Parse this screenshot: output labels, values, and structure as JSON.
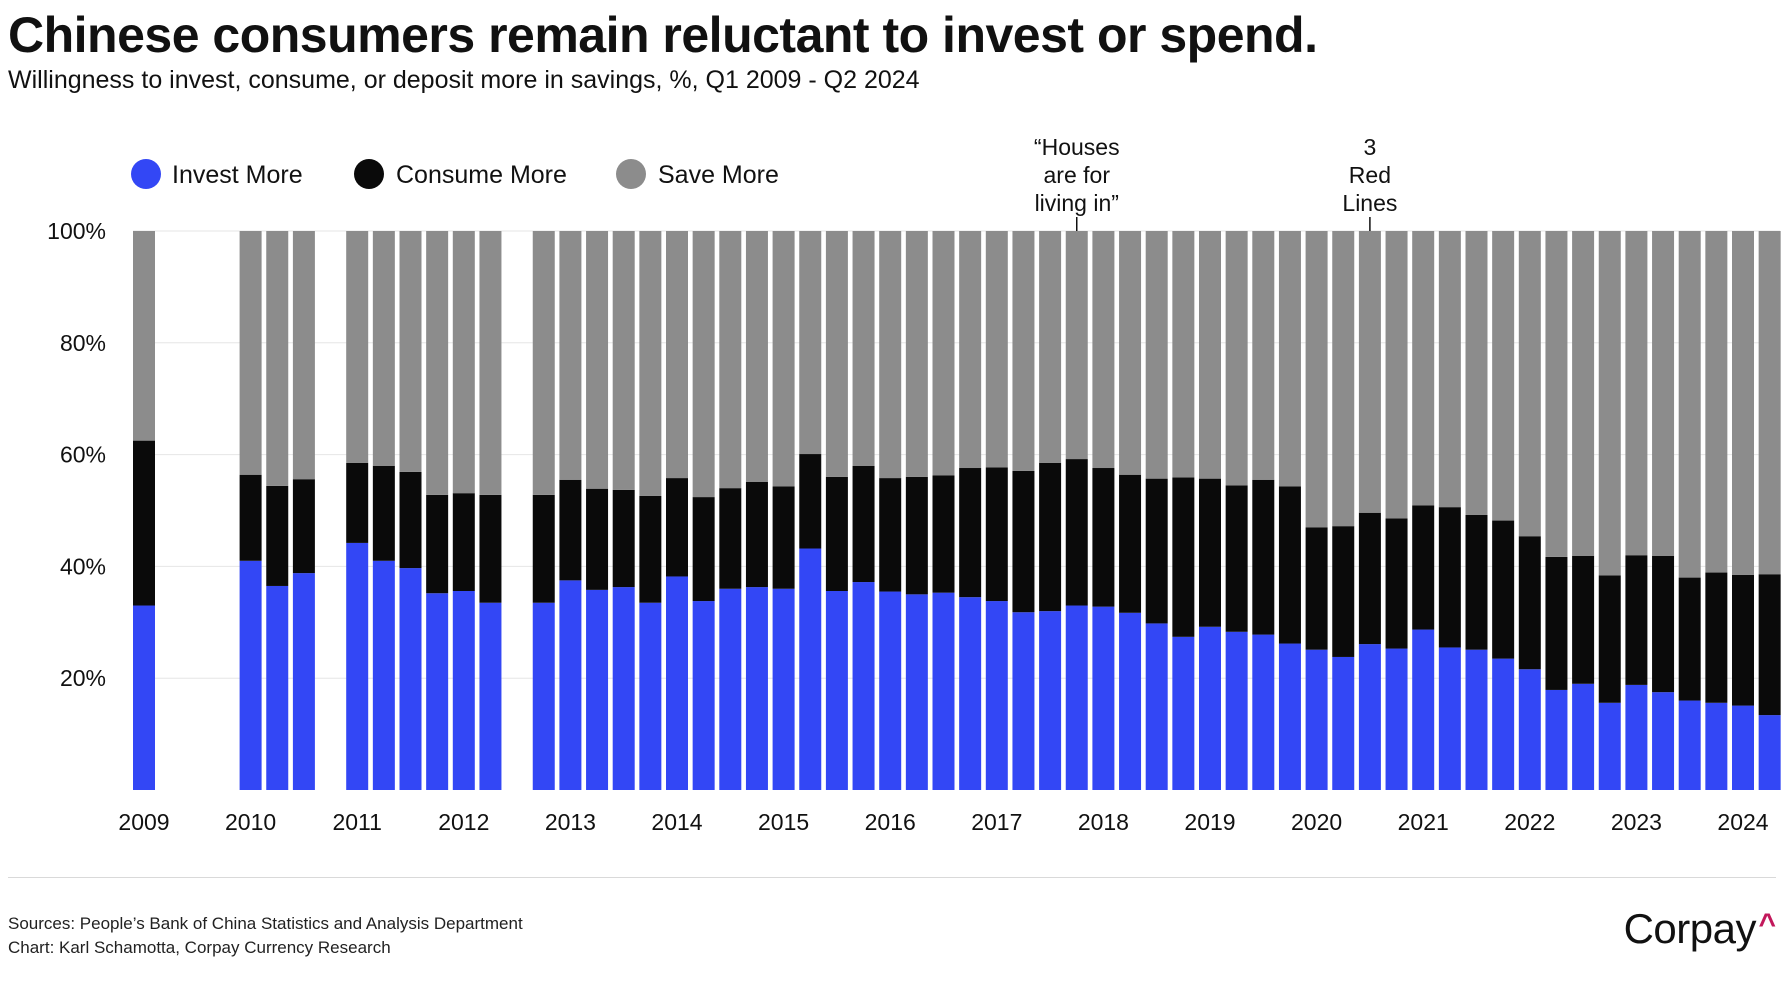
{
  "title": "Chinese consumers remain reluctant to invest or spend.",
  "subtitle": "Willingness to invest, consume, or deposit more in savings, %, Q1 2009 - Q2 2024",
  "footer": {
    "sources": "Sources: People’s Bank of China Statistics and Analysis Department",
    "chart_credit": "Chart: Karl Schamotta, Corpay Currency Research",
    "brand": "Corpay",
    "brand_mark": "^"
  },
  "colors": {
    "invest": "#3347f5",
    "consume": "#0a0a0a",
    "save": "#8c8c8c",
    "background": "#ffffff"
  },
  "chart_data": {
    "type": "bar",
    "stacked": true,
    "ylim": [
      0,
      100
    ],
    "y_ticks": [
      "20%",
      "40%",
      "60%",
      "80%",
      "100%"
    ],
    "y_tick_values": [
      20,
      40,
      60,
      80,
      100
    ],
    "grid": true,
    "legend_position": "top-left",
    "x_tick_labels": [
      "2009",
      "2010",
      "2011",
      "2012",
      "2013",
      "2014",
      "2015",
      "2016",
      "2017",
      "2018",
      "2019",
      "2020",
      "2021",
      "2022",
      "2023",
      "2024"
    ],
    "categories": [
      "2009Q1",
      "2009Q2",
      "2009Q3",
      "2009Q4",
      "2010Q1",
      "2010Q2",
      "2010Q3",
      "2010Q4",
      "2011Q1",
      "2011Q2",
      "2011Q3",
      "2011Q4",
      "2012Q1",
      "2012Q2",
      "2012Q3",
      "2012Q4",
      "2013Q1",
      "2013Q2",
      "2013Q3",
      "2013Q4",
      "2014Q1",
      "2014Q2",
      "2014Q3",
      "2014Q4",
      "2015Q1",
      "2015Q2",
      "2015Q3",
      "2015Q4",
      "2016Q1",
      "2016Q2",
      "2016Q3",
      "2016Q4",
      "2017Q1",
      "2017Q2",
      "2017Q3",
      "2017Q4",
      "2018Q1",
      "2018Q2",
      "2018Q3",
      "2018Q4",
      "2019Q1",
      "2019Q2",
      "2019Q3",
      "2019Q4",
      "2020Q1",
      "2020Q2",
      "2020Q3",
      "2020Q4",
      "2021Q1",
      "2021Q2",
      "2021Q3",
      "2021Q4",
      "2022Q1",
      "2022Q2",
      "2022Q3",
      "2022Q4",
      "2023Q1",
      "2023Q2",
      "2023Q3",
      "2023Q4",
      "2024Q1",
      "2024Q2"
    ],
    "series": [
      {
        "name": "Invest More",
        "values": [
          33,
          null,
          null,
          null,
          41,
          36.5,
          38.8,
          null,
          44.2,
          41,
          39.7,
          35.2,
          35.6,
          33.5,
          null,
          33.5,
          37.5,
          35.8,
          36.3,
          33.5,
          38.2,
          33.8,
          36,
          36.3,
          36,
          43.2,
          35.6,
          37.2,
          35.5,
          35,
          35.3,
          34.5,
          33.8,
          31.8,
          32,
          33,
          32.8,
          31.7,
          29.8,
          27.4,
          29.2,
          28.3,
          27.8,
          26.2,
          25.1,
          23.8,
          26.1,
          25.3,
          28.7,
          25.5,
          25.1,
          23.5,
          21.6,
          17.9,
          19,
          15.6,
          18.8,
          17.5,
          16,
          15.6,
          15.1,
          13.4
        ]
      },
      {
        "name": "Consume More",
        "values": [
          29.5,
          null,
          null,
          null,
          15.4,
          17.9,
          16.8,
          null,
          14.3,
          17,
          17.2,
          17.6,
          17.5,
          19.3,
          null,
          19.3,
          18,
          18.1,
          17.4,
          19.1,
          17.6,
          18.6,
          18,
          18.8,
          18.3,
          16.9,
          20.4,
          20.8,
          20.3,
          21,
          21,
          23.1,
          23.9,
          25.3,
          26.5,
          26.2,
          24.8,
          24.7,
          25.9,
          28.5,
          26.5,
          26.2,
          27.7,
          28.1,
          21.9,
          23.4,
          23.5,
          23.3,
          22.2,
          25.1,
          24.1,
          24.7,
          23.8,
          23.8,
          22.9,
          22.8,
          23.2,
          24.4,
          22,
          23.3,
          23.4,
          25.2
        ]
      },
      {
        "name": "Save More",
        "values": [
          37.5,
          null,
          null,
          null,
          43.6,
          45.6,
          44.4,
          null,
          41.5,
          42,
          43.1,
          47.2,
          46.9,
          47.2,
          null,
          47.2,
          44.5,
          46.1,
          46.3,
          47.4,
          44.2,
          47.6,
          46,
          44.9,
          45.7,
          39.9,
          44,
          42,
          44.2,
          44,
          43.7,
          42.4,
          42.3,
          42.9,
          41.5,
          40.8,
          42.4,
          43.6,
          44.3,
          44.1,
          44.3,
          45.5,
          44.5,
          45.7,
          53,
          52.8,
          50.4,
          51.4,
          49.1,
          49.4,
          50.8,
          51.8,
          54.6,
          58.3,
          58.1,
          61.6,
          58,
          58.1,
          62,
          61.1,
          61.5,
          61.4
        ]
      }
    ],
    "annotations": [
      {
        "text_lines": [
          "“Houses",
          "are for",
          "living in”"
        ],
        "at": "2017Q4"
      },
      {
        "text_lines": [
          "3",
          "Red",
          "Lines"
        ],
        "at": "2020Q3"
      }
    ]
  }
}
